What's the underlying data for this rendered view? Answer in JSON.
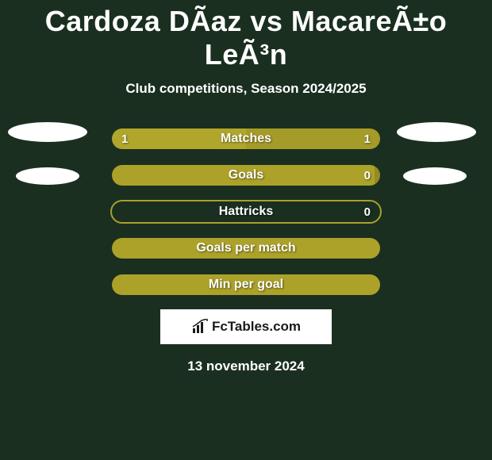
{
  "title": "Cardoza DÃ­az vs MacareÃ±o LeÃ³n",
  "subtitle": "Club competitions, Season 2024/2025",
  "logo_text": "FcTables.com",
  "date": "13 november 2024",
  "colors": {
    "background": "#1a2f20",
    "left_player": "#b0a62c",
    "right_player": "#aca22a",
    "outline": "#aaa02a",
    "avatar": "#ffffff",
    "text": "#ffffff"
  },
  "bars": [
    {
      "label": "Matches",
      "left_value": "1",
      "right_value": "1",
      "left_pct": 50,
      "right_pct": 50,
      "left_color": "#b0a62c",
      "right_color": "#a59b28",
      "show_values": true,
      "outline": false
    },
    {
      "label": "Goals",
      "left_value": "",
      "right_value": "0",
      "left_pct": 98,
      "right_pct": 2,
      "left_color": "#aca22a",
      "right_color": "#948b22",
      "show_values": true,
      "outline": false
    },
    {
      "label": "Hattricks",
      "left_value": "",
      "right_value": "0",
      "left_pct": 0,
      "right_pct": 0,
      "left_color": "#aaa02a",
      "right_color": "#aaa02a",
      "show_values": true,
      "outline": true
    },
    {
      "label": "Goals per match",
      "left_value": "",
      "right_value": "",
      "left_pct": 100,
      "right_pct": 0,
      "left_color": "#aca22a",
      "right_color": "#aca22a",
      "show_values": false,
      "outline": false
    },
    {
      "label": "Min per goal",
      "left_value": "",
      "right_value": "",
      "left_pct": 100,
      "right_pct": 0,
      "left_color": "#aca22a",
      "right_color": "#aca22a",
      "show_values": false,
      "outline": false
    }
  ]
}
